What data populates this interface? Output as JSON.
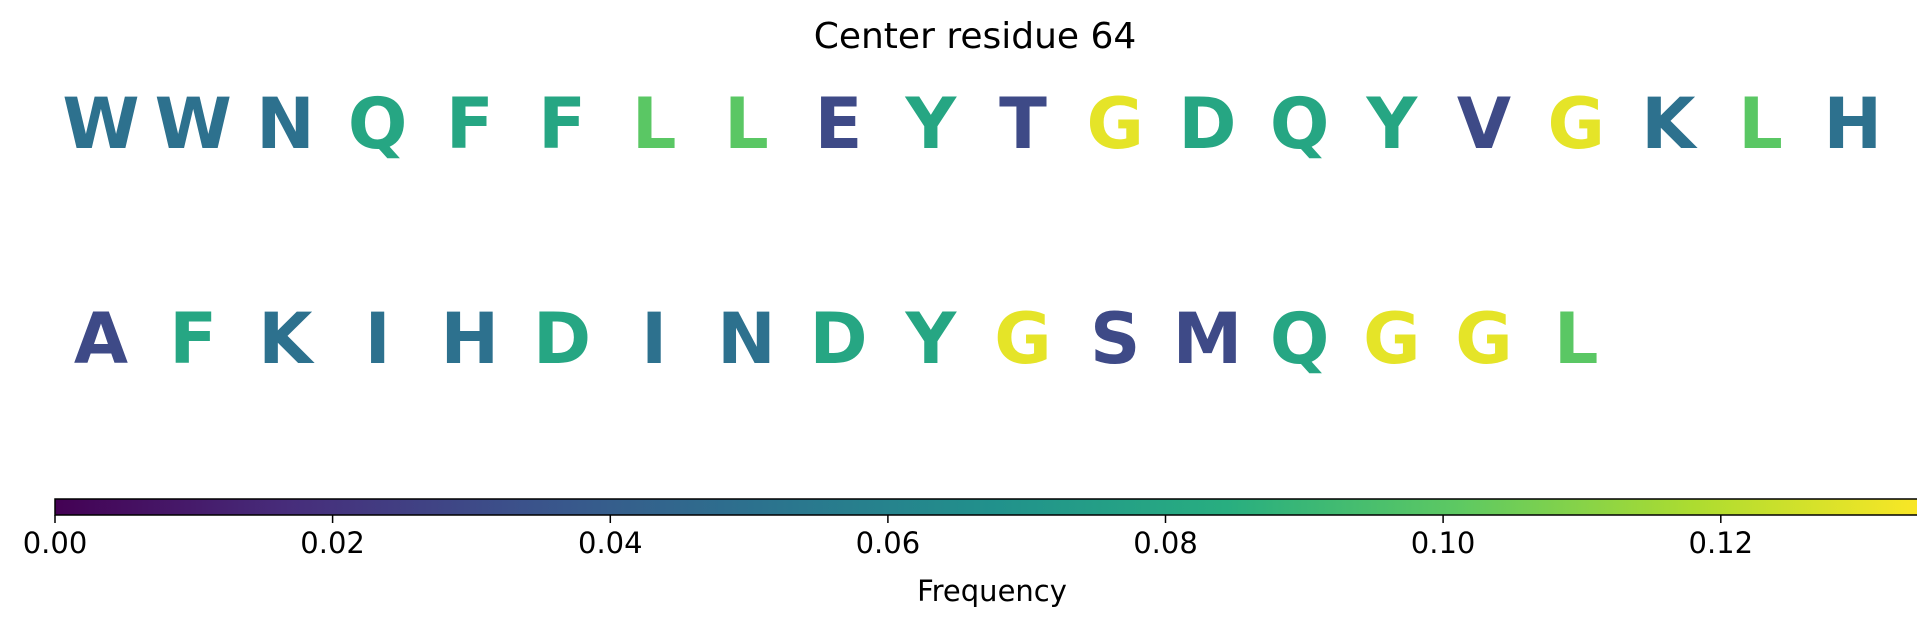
{
  "chart_data": {
    "type": "heatmap",
    "title": "Center residue 64",
    "rows": [
      {
        "residues": [
          "W",
          "W",
          "N",
          "Q",
          "F",
          "F",
          "L",
          "L",
          "E",
          "Y",
          "T",
          "G",
          "D",
          "Q",
          "Y",
          "V",
          "G",
          "K",
          "L",
          "H"
        ],
        "frequencies": [
          0.05,
          0.05,
          0.05,
          0.08,
          0.08,
          0.08,
          0.1,
          0.1,
          0.03,
          0.08,
          0.03,
          0.13,
          0.08,
          0.08,
          0.08,
          0.03,
          0.13,
          0.05,
          0.1,
          0.05
        ]
      },
      {
        "residues": [
          "A",
          "F",
          "K",
          "I",
          "H",
          "D",
          "I",
          "N",
          "D",
          "Y",
          "G",
          "S",
          "M",
          "Q",
          "G",
          "G",
          "L"
        ],
        "frequencies": [
          0.03,
          0.08,
          0.05,
          0.05,
          0.05,
          0.08,
          0.05,
          0.05,
          0.08,
          0.08,
          0.13,
          0.03,
          0.03,
          0.08,
          0.13,
          0.13,
          0.1
        ]
      }
    ],
    "colorbar": {
      "label": "Frequency",
      "colormap": "viridis",
      "min": 0.0,
      "max": 0.135,
      "ticks": [
        0.0,
        0.02,
        0.04,
        0.06,
        0.08,
        0.1,
        0.12
      ],
      "tick_labels": [
        "0.00",
        "0.02",
        "0.04",
        "0.06",
        "0.08",
        "0.10",
        "0.12"
      ]
    }
  }
}
